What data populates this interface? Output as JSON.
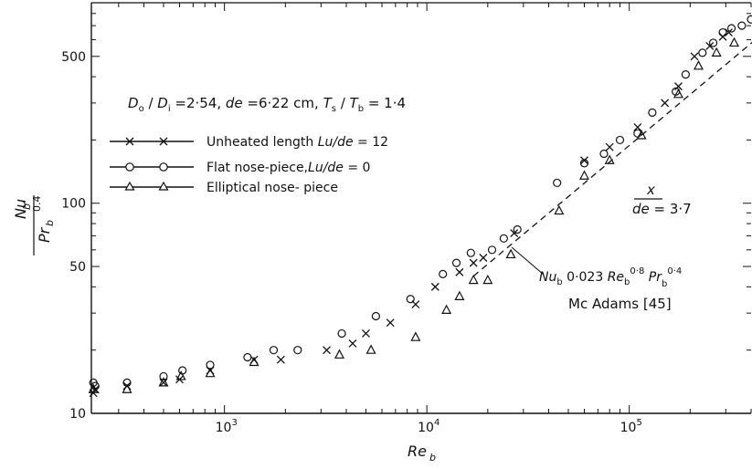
{
  "chart_data": {
    "type": "scatter",
    "xscale": "log",
    "yscale": "log",
    "xlim": [
      220,
      400000
    ],
    "ylim": [
      10,
      900
    ],
    "xlabel": "Re_b",
    "ylabel": "Nu_b / Pr_b^0.4",
    "x_ticks": [
      {
        "value": 1000,
        "label": "10",
        "exp": "3"
      },
      {
        "value": 10000,
        "label": "10",
        "exp": "4"
      },
      {
        "value": 100000,
        "label": "10",
        "exp": "5"
      }
    ],
    "y_ticks": [
      {
        "value": 10,
        "label": "10"
      },
      {
        "value": 50,
        "label": "50"
      },
      {
        "value": 100,
        "label": "100"
      },
      {
        "value": 500,
        "label": "500"
      }
    ],
    "params_text": "D_o / D_i = 2·54, de = 6·22 cm, T_s / T_b = 1·4",
    "ratio_text": "x / de = 3·7",
    "series": [
      {
        "name": "Unheated length Lu/de = 12",
        "marker": "x",
        "points": [
          [
            225,
            12.5
          ],
          [
            230,
            13
          ],
          [
            330,
            13.5
          ],
          [
            500,
            14
          ],
          [
            600,
            14.5
          ],
          [
            850,
            16
          ],
          [
            1400,
            18
          ],
          [
            1900,
            18
          ],
          [
            3200,
            20
          ],
          [
            4300,
            21.5
          ],
          [
            5000,
            24
          ],
          [
            6600,
            27
          ],
          [
            8800,
            33
          ],
          [
            11000,
            40
          ],
          [
            14500,
            47
          ],
          [
            17000,
            52
          ],
          [
            19000,
            55
          ],
          [
            27000,
            72
          ],
          [
            60000,
            160
          ],
          [
            80000,
            185
          ],
          [
            110000,
            230
          ],
          [
            150000,
            300
          ],
          [
            175000,
            360
          ],
          [
            210000,
            500
          ],
          [
            250000,
            560
          ],
          [
            290000,
            620
          ],
          [
            310000,
            650
          ]
        ]
      },
      {
        "name": "Flat nose-piece, Lu/de = 0",
        "marker": "o",
        "points": [
          [
            225,
            14
          ],
          [
            230,
            13.5
          ],
          [
            330,
            14
          ],
          [
            500,
            15
          ],
          [
            620,
            16
          ],
          [
            850,
            17
          ],
          [
            1300,
            18.5
          ],
          [
            1750,
            20
          ],
          [
            2300,
            20
          ],
          [
            3800,
            24
          ],
          [
            5600,
            29
          ],
          [
            8300,
            35
          ],
          [
            12000,
            46
          ],
          [
            14000,
            52
          ],
          [
            16500,
            58
          ],
          [
            21000,
            60
          ],
          [
            24000,
            68
          ],
          [
            28000,
            75
          ],
          [
            44000,
            125
          ],
          [
            60000,
            155
          ],
          [
            75000,
            172
          ],
          [
            90000,
            200
          ],
          [
            110000,
            215
          ],
          [
            130000,
            270
          ],
          [
            170000,
            340
          ],
          [
            190000,
            410
          ],
          [
            230000,
            520
          ],
          [
            260000,
            580
          ],
          [
            290000,
            650
          ],
          [
            320000,
            680
          ],
          [
            360000,
            700
          ],
          [
            400000,
            750
          ]
        ]
      },
      {
        "name": "Elliptical nose-piece",
        "marker": "triangle",
        "points": [
          [
            225,
            13
          ],
          [
            330,
            13
          ],
          [
            500,
            14
          ],
          [
            610,
            15
          ],
          [
            850,
            15.5
          ],
          [
            1400,
            17.5
          ],
          [
            3700,
            19
          ],
          [
            5300,
            20
          ],
          [
            8800,
            23
          ],
          [
            12500,
            31
          ],
          [
            14500,
            36
          ],
          [
            17000,
            43
          ],
          [
            20000,
            43
          ],
          [
            26000,
            57
          ],
          [
            45000,
            92
          ],
          [
            60000,
            135
          ],
          [
            80000,
            160
          ],
          [
            115000,
            210
          ],
          [
            175000,
            330
          ],
          [
            220000,
            450
          ],
          [
            270000,
            520
          ],
          [
            330000,
            580
          ]
        ]
      }
    ],
    "correlation": {
      "name": "Nu_b 0·023 Re_b^0·8 Pr_b^0·4",
      "coefficient": 0.023,
      "re_exponent": 0.8,
      "pr_exponent": 0.4,
      "source": "Mc Adams [45]",
      "x_range": [
        17000,
        420000
      ],
      "y_range": [
        45,
        600
      ]
    }
  }
}
